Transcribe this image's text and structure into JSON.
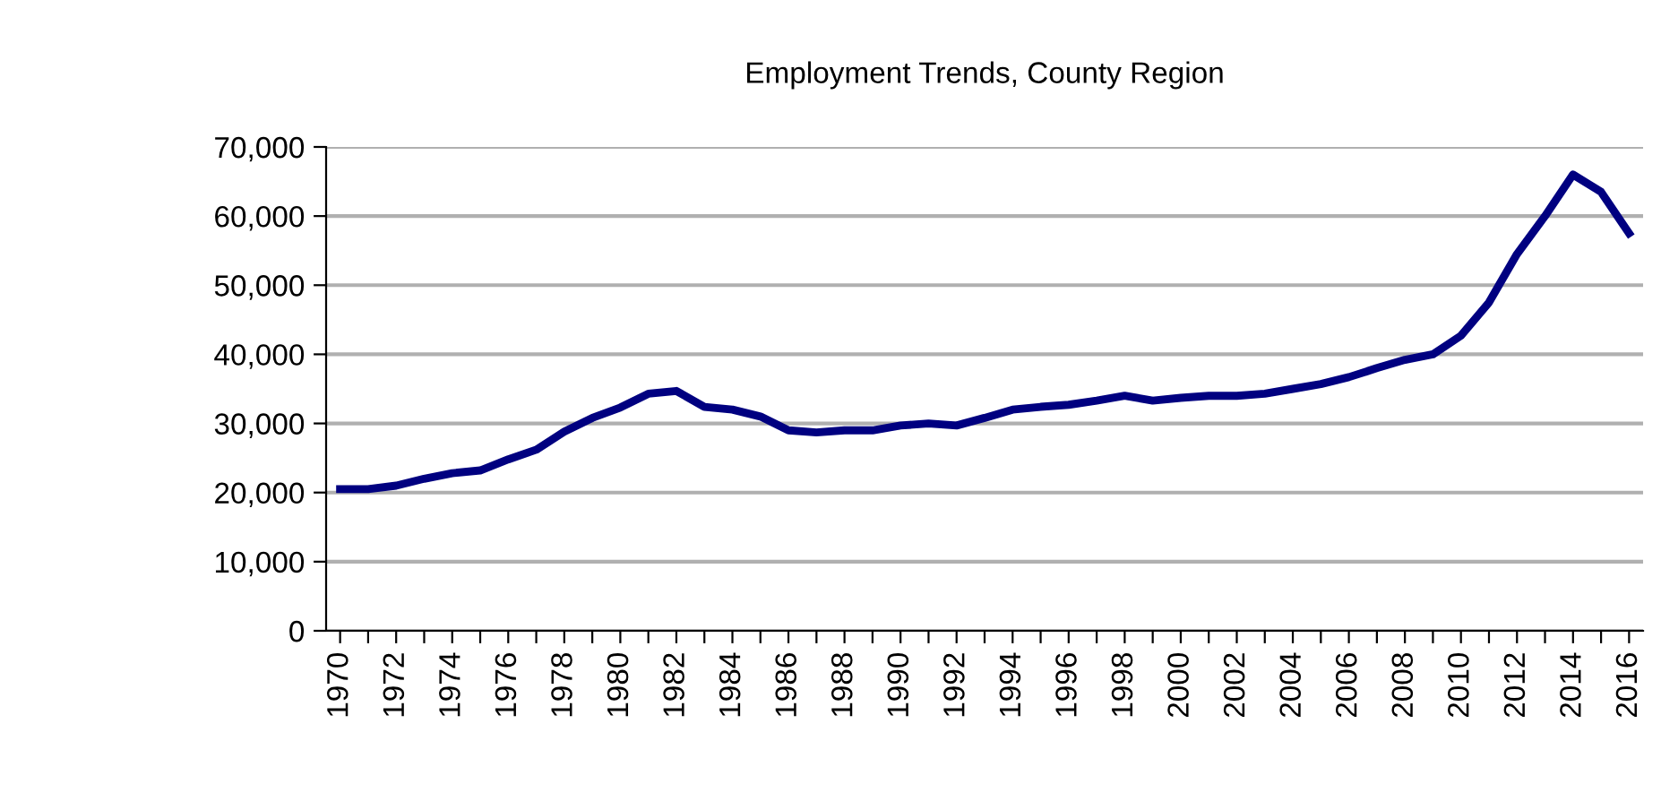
{
  "chart_data": {
    "type": "line",
    "title": "Employment Trends, County Region",
    "categories": [
      "1970",
      null,
      "1972",
      null,
      "1974",
      null,
      "1976",
      null,
      "1978",
      null,
      "1980",
      null,
      "1982",
      null,
      "1984",
      null,
      "1986",
      null,
      "1988",
      null,
      "1990",
      null,
      "1992",
      null,
      "1994",
      null,
      "1996",
      null,
      "1998",
      null,
      "2000",
      null,
      "2002",
      null,
      "2004",
      null,
      "2006",
      null,
      "2008",
      null,
      "2010",
      null,
      "2012",
      null,
      "2014",
      null,
      "2016"
    ],
    "series": [
      {
        "color": "#000080",
        "values": [
          20500,
          20500,
          21000,
          22000,
          22800,
          23200,
          24800,
          26200,
          28800,
          30800,
          32300,
          34300,
          34700,
          32400,
          32000,
          31000,
          29000,
          28700,
          29000,
          29000,
          29700,
          30000,
          29700,
          30800,
          32000,
          32400,
          32700,
          33300,
          34000,
          33300,
          33700,
          34000,
          34000,
          34300,
          35000,
          35700,
          36700,
          38000,
          39200,
          40000,
          42700,
          47500,
          54500,
          60000,
          66000,
          63500,
          57500
        ]
      }
    ],
    "ylim": [
      0,
      70000
    ],
    "yticks": [
      {
        "value": 0,
        "label": "0"
      },
      {
        "value": 10000,
        "label": "10,000"
      },
      {
        "value": 20000,
        "label": "20,000"
      },
      {
        "value": 30000,
        "label": "30,000"
      },
      {
        "value": 40000,
        "label": "40,000"
      },
      {
        "value": 50000,
        "label": "50,000"
      },
      {
        "value": 60000,
        "label": "60,000"
      },
      {
        "value": 70000,
        "label": "70,000"
      }
    ],
    "grid": "y",
    "legend": false,
    "marker": "none",
    "line_style": "solid"
  }
}
